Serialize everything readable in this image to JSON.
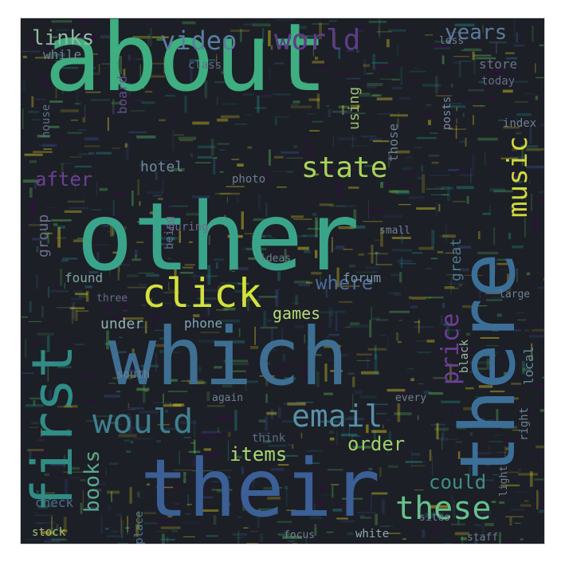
{
  "wordcloud": {
    "background": "#1c1f26",
    "palette": [
      "#fde725",
      "#5ec962",
      "#21918c",
      "#3b528b",
      "#440154"
    ],
    "words": [
      {
        "text": "about",
        "color": "#3fae80"
      },
      {
        "text": "other",
        "color": "#3aa48a"
      },
      {
        "text": "which",
        "color": "#3e6f93"
      },
      {
        "text": "their",
        "color": "#3b5f96"
      },
      {
        "text": "there",
        "color": "#3c6f98"
      },
      {
        "text": "first",
        "color": "#2f8d86"
      },
      {
        "text": "click",
        "color": "#d3e23c"
      },
      {
        "text": "would",
        "color": "#3f7f8e"
      },
      {
        "text": "email",
        "color": "#5a8fa8"
      },
      {
        "text": "these",
        "color": "#64c28a"
      },
      {
        "text": "state",
        "color": "#a8d35a"
      },
      {
        "text": "world",
        "color": "#5e3c87"
      },
      {
        "text": "video",
        "color": "#5a7da0"
      },
      {
        "text": "music",
        "color": "#d1d93d"
      },
      {
        "text": "price",
        "color": "#6d3f96"
      },
      {
        "text": "order",
        "color": "#9fd06c"
      },
      {
        "text": "items",
        "color": "#a9d870"
      },
      {
        "text": "books",
        "color": "#5aa88d"
      },
      {
        "text": "group",
        "color": "#6d6f8c"
      },
      {
        "text": "links",
        "color": "#8fb8a0"
      },
      {
        "text": "years",
        "color": "#5c7a9a"
      },
      {
        "text": "after",
        "color": "#6c3f93"
      },
      {
        "text": "hotel",
        "color": "#6f8aa0"
      },
      {
        "text": "where",
        "color": "#4d6e9a"
      },
      {
        "text": "found",
        "color": "#7ea6a0"
      },
      {
        "text": "forum",
        "color": "#7b98a0"
      },
      {
        "text": "under",
        "color": "#8fb2a8"
      },
      {
        "text": "phone",
        "color": "#7fa6b0"
      },
      {
        "text": "games",
        "color": "#b9d97a"
      },
      {
        "text": "great",
        "color": "#4f7a8a"
      },
      {
        "text": "black",
        "color": "#9fb8a0"
      },
      {
        "text": "local",
        "color": "#5f87a0"
      },
      {
        "text": "could",
        "color": "#3f8f86"
      },
      {
        "text": "using",
        "color": "#9fc070"
      },
      {
        "text": "store",
        "color": "#6f6f8f"
      },
      {
        "text": "today",
        "color": "#6a6a8a"
      },
      {
        "text": "posts",
        "color": "#7a8aa0"
      },
      {
        "text": "check",
        "color": "#4a6f8a"
      },
      {
        "text": "place",
        "color": "#4d7a8a"
      },
      {
        "text": "while",
        "color": "#6f7f90"
      },
      {
        "text": "house",
        "color": "#5f6f88"
      },
      {
        "text": "think",
        "color": "#5f6f88"
      },
      {
        "text": "white",
        "color": "#8fa8b0"
      },
      {
        "text": "south",
        "color": "#6f7f90"
      },
      {
        "text": "three",
        "color": "#5f6f88"
      },
      {
        "text": "right",
        "color": "#6f7f90"
      },
      {
        "text": "stock",
        "color": "#a8c070"
      },
      {
        "text": "those",
        "color": "#6f7f90"
      },
      {
        "text": "class",
        "color": "#5f6f88"
      },
      {
        "text": "index",
        "color": "#6f7f90"
      },
      {
        "text": "during",
        "color": "#6a6a8a"
      },
      {
        "text": "being",
        "color": "#6a6a8a"
      },
      {
        "text": "less",
        "color": "#6f7f90"
      },
      {
        "text": "photo",
        "color": "#6f7f90"
      },
      {
        "text": "every",
        "color": "#6f7f90"
      },
      {
        "text": "large",
        "color": "#6f7f90"
      },
      {
        "text": "staff",
        "color": "#6f7f90"
      },
      {
        "text": "board",
        "color": "#5f4f88"
      },
      {
        "text": "focus",
        "color": "#6f7f90"
      },
      {
        "text": "sites",
        "color": "#6f7f90"
      },
      {
        "text": "small",
        "color": "#6f7f90"
      },
      {
        "text": "again",
        "color": "#6f7f90"
      },
      {
        "text": "light",
        "color": "#6f7f90"
      },
      {
        "text": "ideas",
        "color": "#6f7f90"
      }
    ]
  }
}
